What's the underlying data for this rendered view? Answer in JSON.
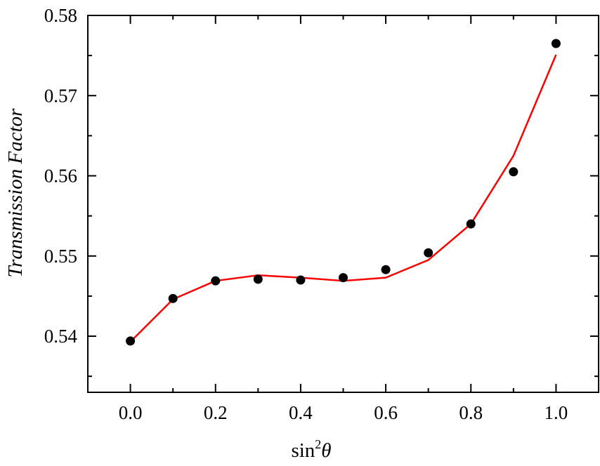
{
  "chart_data": {
    "type": "scatter",
    "xlabel_base": "sin",
    "xlabel_sup": "2",
    "xlabel_var": "θ",
    "ylabel": "Transmission Factor",
    "xlim": [
      -0.1,
      1.1
    ],
    "ylim": [
      0.533,
      0.58
    ],
    "x_ticks": [
      0.0,
      0.2,
      0.4,
      0.6,
      0.8,
      1.0
    ],
    "x_tick_labels": [
      "0.0",
      "0.2",
      "0.4",
      "0.6",
      "0.8",
      "1.0"
    ],
    "x_minor_ticks": [
      -0.1,
      0.1,
      0.3,
      0.5,
      0.7,
      0.9,
      1.1
    ],
    "y_ticks": [
      0.54,
      0.55,
      0.56,
      0.57,
      0.58
    ],
    "y_tick_labels": [
      "0.54",
      "0.55",
      "0.56",
      "0.57",
      "0.58"
    ],
    "y_minor_ticks": [
      0.535,
      0.545,
      0.555,
      0.565,
      0.575
    ],
    "grid": false,
    "series": [
      {
        "kind": "points",
        "color": "#000000",
        "x": [
          0.0,
          0.1,
          0.2,
          0.3,
          0.4,
          0.5,
          0.6,
          0.7,
          0.8,
          0.9,
          1.0
        ],
        "y": [
          0.5394,
          0.5447,
          0.5469,
          0.5471,
          0.547,
          0.5473,
          0.5483,
          0.5504,
          0.554,
          0.5605,
          0.5765
        ]
      },
      {
        "kind": "line",
        "color": "#ff0000",
        "x": [
          0.0,
          0.1,
          0.2,
          0.3,
          0.4,
          0.5,
          0.6,
          0.7,
          0.8,
          0.9,
          1.0
        ],
        "y": [
          0.5393,
          0.5446,
          0.5469,
          0.5476,
          0.5473,
          0.5469,
          0.5473,
          0.5495,
          0.554,
          0.5625,
          0.5751
        ]
      }
    ]
  }
}
